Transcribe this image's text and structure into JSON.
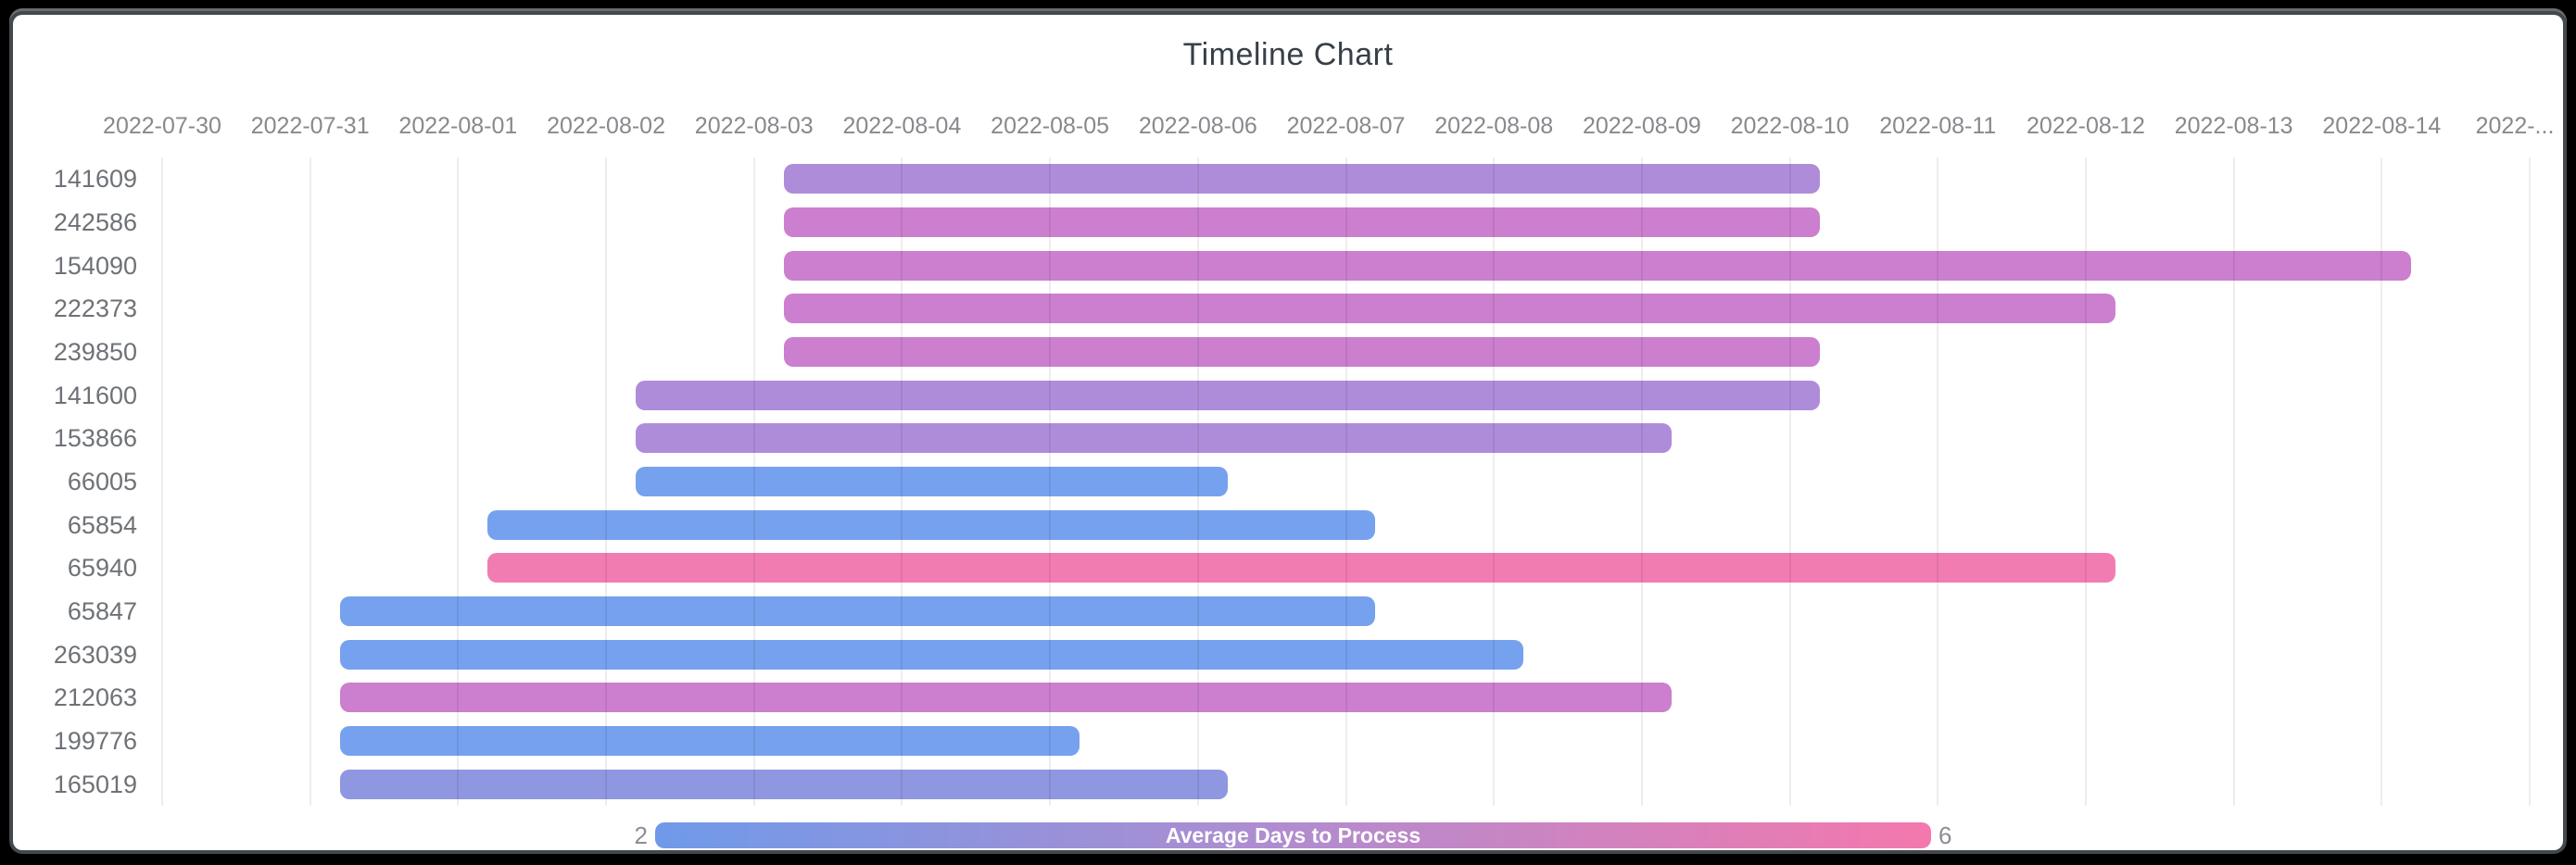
{
  "page": {
    "background": "#000000",
    "card_background": "#ffffff",
    "card_border": "#43484c"
  },
  "chart_data": {
    "type": "bar",
    "subtype": "horizontal-timeline-gantt",
    "title": "Timeline Chart",
    "x_axis": {
      "start_date": "2022-07-30",
      "span_days": 16,
      "ticks": [
        "2022-07-30",
        "2022-07-31",
        "2022-08-01",
        "2022-08-02",
        "2022-08-03",
        "2022-08-04",
        "2022-08-05",
        "2022-08-06",
        "2022-08-07",
        "2022-08-08",
        "2022-08-09",
        "2022-08-10",
        "2022-08-11",
        "2022-08-12",
        "2022-08-13",
        "2022-08-14",
        "2022-..."
      ],
      "grid": true
    },
    "rows": [
      {
        "id": "141609",
        "start": "2022-08-03",
        "end": "2022-08-10",
        "start_day": 4.2,
        "end_day": 11.2,
        "color": "#af8cd9"
      },
      {
        "id": "242586",
        "start": "2022-08-03",
        "end": "2022-08-10",
        "start_day": 4.2,
        "end_day": 11.2,
        "color": "#cb7fce"
      },
      {
        "id": "154090",
        "start": "2022-08-03",
        "end": "2022-08-14",
        "start_day": 4.2,
        "end_day": 15.2,
        "color": "#cb7fce"
      },
      {
        "id": "222373",
        "start": "2022-08-03",
        "end": "2022-08-12",
        "start_day": 4.2,
        "end_day": 13.2,
        "color": "#cb7fce"
      },
      {
        "id": "239850",
        "start": "2022-08-03",
        "end": "2022-08-10",
        "start_day": 4.2,
        "end_day": 11.2,
        "color": "#cb7fce"
      },
      {
        "id": "141600",
        "start": "2022-08-02",
        "end": "2022-08-10",
        "start_day": 3.2,
        "end_day": 11.2,
        "color": "#af8cd9"
      },
      {
        "id": "153866",
        "start": "2022-08-02",
        "end": "2022-08-09",
        "start_day": 3.2,
        "end_day": 10.2,
        "color": "#af8cd9"
      },
      {
        "id": "66005",
        "start": "2022-08-02",
        "end": "2022-08-06",
        "start_day": 3.2,
        "end_day": 7.2,
        "color": "#76a1ee"
      },
      {
        "id": "65854",
        "start": "2022-08-01",
        "end": "2022-08-07",
        "start_day": 2.2,
        "end_day": 8.2,
        "color": "#76a1ee"
      },
      {
        "id": "65940",
        "start": "2022-08-01",
        "end": "2022-08-12",
        "start_day": 2.2,
        "end_day": 13.2,
        "color": "#f17cb2"
      },
      {
        "id": "65847",
        "start": "2022-07-31",
        "end": "2022-08-07",
        "start_day": 1.2,
        "end_day": 8.2,
        "color": "#76a1ee"
      },
      {
        "id": "263039",
        "start": "2022-07-31",
        "end": "2022-08-08",
        "start_day": 1.2,
        "end_day": 9.2,
        "color": "#76a1ee"
      },
      {
        "id": "212063",
        "start": "2022-07-31",
        "end": "2022-08-09",
        "start_day": 1.2,
        "end_day": 10.2,
        "color": "#cb7fce"
      },
      {
        "id": "199776",
        "start": "2022-07-31",
        "end": "2022-08-05",
        "start_day": 1.2,
        "end_day": 6.2,
        "color": "#76a1ee"
      },
      {
        "id": "165019",
        "start": "2022-07-31",
        "end": "2022-08-06",
        "start_day": 1.2,
        "end_day": 7.2,
        "color": "#8e97e0"
      }
    ],
    "legend": {
      "title": "Average Days to Process",
      "min": "2",
      "max": "6",
      "gradient": [
        "#6f9ae9",
        "#b18ccf",
        "#f478ad"
      ],
      "position": "bottom"
    },
    "style": {
      "title_color": "#373f47",
      "x_label_color": "#87898d",
      "y_label_color": "#6e7277",
      "grid_color": "rgba(0,0,0,0.07)",
      "legend_text_color": "#ffffff",
      "legend_num_color": "#8b8e92"
    }
  }
}
